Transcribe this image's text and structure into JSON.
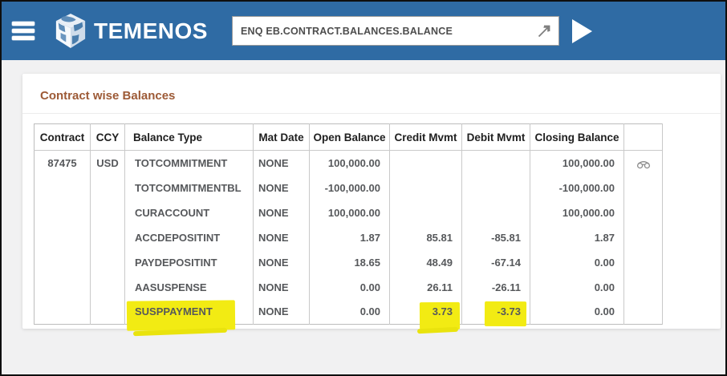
{
  "topbar": {
    "logo_text": "TEMENOS",
    "command": {
      "value": "ENQ EB.CONTRACT.BALANCES.BALANCE",
      "placeholder": ""
    },
    "icons": {
      "menu": "hamburger-icon",
      "expand": "popout-arrow-icon",
      "run": "play-icon"
    }
  },
  "panel": {
    "title": "Contract wise Balances"
  },
  "table": {
    "columns": [
      "Contract",
      "CCY",
      "Balance Type",
      "Mat Date",
      "Open Balance",
      "Credit Mvmt",
      "Debit Mvmt",
      "Closing Balance",
      ""
    ],
    "rows": [
      {
        "cells": [
          "87475",
          "USD",
          "TOTCOMMITMENT",
          "NONE",
          "100,000.00",
          "",
          "",
          "100,000.00"
        ],
        "view_icon": true,
        "highlighted_cells": []
      },
      {
        "cells": [
          "",
          "",
          "TOTCOMMITMENTBL",
          "NONE",
          "-100,000.00",
          "",
          "",
          "-100,000.00"
        ],
        "view_icon": false,
        "highlighted_cells": []
      },
      {
        "cells": [
          "",
          "",
          "CURACCOUNT",
          "NONE",
          "100,000.00",
          "",
          "",
          "100,000.00"
        ],
        "view_icon": false,
        "highlighted_cells": []
      },
      {
        "cells": [
          "",
          "",
          "ACCDEPOSITINT",
          "NONE",
          "1.87",
          "85.81",
          "-85.81",
          "1.87"
        ],
        "view_icon": false,
        "highlighted_cells": []
      },
      {
        "cells": [
          "",
          "",
          "PAYDEPOSITINT",
          "NONE",
          "18.65",
          "48.49",
          "-67.14",
          "0.00"
        ],
        "view_icon": false,
        "highlighted_cells": []
      },
      {
        "cells": [
          "",
          "",
          "AASUSPENSE",
          "NONE",
          "0.00",
          "26.11",
          "-26.11",
          "0.00"
        ],
        "view_icon": false,
        "highlighted_cells": []
      },
      {
        "cells": [
          "",
          "",
          "SUSPPAYMENT",
          "NONE",
          "0.00",
          "3.73",
          "-3.73",
          "0.00"
        ],
        "view_icon": false,
        "highlighted_cells": [
          2,
          5,
          6
        ]
      }
    ],
    "view_icon_name": "binoculars-icon"
  },
  "colors": {
    "topbar_blue": "#2f6ba4",
    "title_brown": "#9d5a36",
    "highlight_yellow": "#f2eb13"
  }
}
